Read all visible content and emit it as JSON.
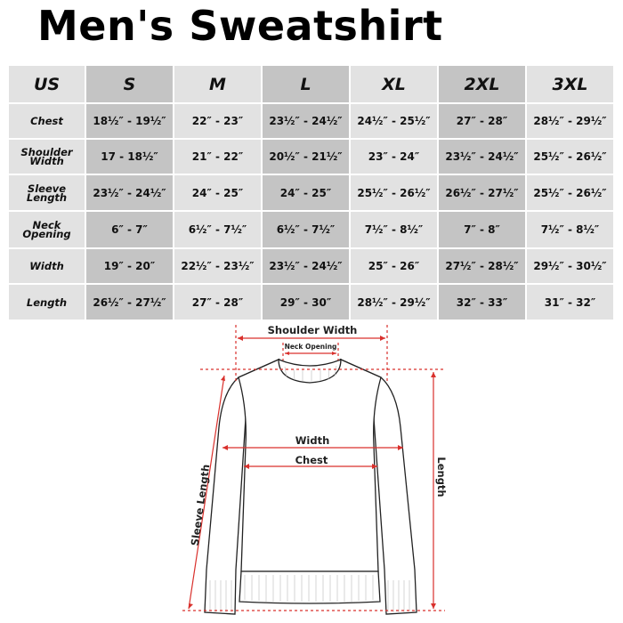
{
  "title": "Men's Sweatshirt",
  "table": {
    "header": [
      "US",
      "S",
      "M",
      "L",
      "XL",
      "2XL",
      "3XL"
    ],
    "rows": [
      {
        "label": "Chest",
        "values": [
          "18½″ - 19½″",
          "22″ - 23″",
          "23½″ - 24½″",
          "24½″ - 25½″",
          "27″ - 28″",
          "28½″ - 29½″"
        ]
      },
      {
        "label": "Shoulder\nWidth",
        "values": [
          "17 - 18½″",
          "21″ - 22″",
          "20½″ - 21½″",
          "23″ - 24″",
          "23½″ - 24½″",
          "25½″ - 26½″"
        ]
      },
      {
        "label": "Sleeve\nLength",
        "values": [
          "23½″ - 24½″",
          "24″ - 25″",
          "24″ - 25″",
          "25½″ - 26½″",
          "26½″ - 27½″",
          "25½″ - 26½″"
        ]
      },
      {
        "label": "Neck\nOpening",
        "values": [
          "6″ - 7″",
          "6½″ - 7½″",
          "6½″ - 7½″",
          "7½″ - 8½″",
          "7″ - 8″",
          "7½″ - 8½″"
        ]
      },
      {
        "label": "Width",
        "values": [
          "19″ - 20″",
          "22½″ - 23½″",
          "23½″ - 24½″",
          "25″ - 26″",
          "27½″ - 28½″",
          "29½″ - 30½″"
        ]
      },
      {
        "label": "Length",
        "values": [
          "26½″ - 27½″",
          "27″ - 28″",
          "29″ - 30″",
          "28½″ - 29½″",
          "32″ - 33″",
          "31″ - 32″"
        ]
      }
    ]
  },
  "diagram": {
    "shoulder_width": "Shoulder Width",
    "neck_opening": "Neck Opening",
    "width": "Width",
    "chest": "Chest",
    "length": "Length",
    "sleeve_length": "Sleeve Length",
    "measure_color": "#d9302c"
  }
}
